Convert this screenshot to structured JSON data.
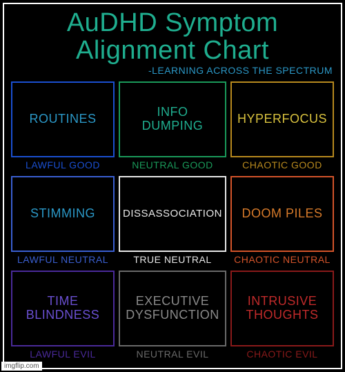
{
  "title_text": "AuDHD Symptom\nAlignment Chart",
  "title_color": "#1fae8f",
  "subtitle_text": "-LEARNING ACROSS THE SPECTRUM",
  "subtitle_color": "#2b98c7",
  "background_color": "#000000",
  "frame_border_color": "#ffffff",
  "watermark": "imgflip.com",
  "cells": [
    {
      "symptom": "ROUTINES",
      "symptom_color": "#2b98c7",
      "alignment": "LAWFUL GOOD",
      "alignment_color": "#1a4fd1",
      "border_color": "#1a4fd1"
    },
    {
      "symptom": "INFO\nDUMPING",
      "symptom_color": "#1fae8f",
      "alignment": "NEUTRAL GOOD",
      "alignment_color": "#1a9a5a",
      "border_color": "#1a9a5a"
    },
    {
      "symptom": "HYPERFOCUS",
      "symptom_color": "#d9c23e",
      "alignment": "CHAOTIC GOOD",
      "alignment_color": "#b88a1e",
      "border_color": "#b88a1e"
    },
    {
      "symptom": "STIMMING",
      "symptom_color": "#2b98c7",
      "alignment": "LAWFUL NEUTRAL",
      "alignment_color": "#3a5fd1",
      "border_color": "#3a5fd1"
    },
    {
      "symptom": "DISSASSOCIATION",
      "symptom_color": "#e8e8e8",
      "alignment": "TRUE NEUTRAL",
      "alignment_color": "#e8e8e8",
      "border_color": "#e8e8e8"
    },
    {
      "symptom": "DOOM PILES",
      "symptom_color": "#d67a2a",
      "alignment": "CHAOTIC NEUTRAL",
      "alignment_color": "#d4542a",
      "border_color": "#d4542a"
    },
    {
      "symptom": "TIME\nBLINDNESS",
      "symptom_color": "#6a4fd1",
      "alignment": "LAWFUL EVIL",
      "alignment_color": "#4a2a9a",
      "border_color": "#4a2a9a"
    },
    {
      "symptom": "EXECUTIVE\nDYSFUNCTION",
      "symptom_color": "#8a8a8a",
      "alignment": "NEUTRAL EVIL",
      "alignment_color": "#6a6a6a",
      "border_color": "#6a6a6a"
    },
    {
      "symptom": "INTRUSIVE\nTHOUGHTS",
      "symptom_color": "#c02a2a",
      "alignment": "CHAOTIC EVIL",
      "alignment_color": "#8a1a1a",
      "border_color": "#8a1a1a"
    }
  ]
}
